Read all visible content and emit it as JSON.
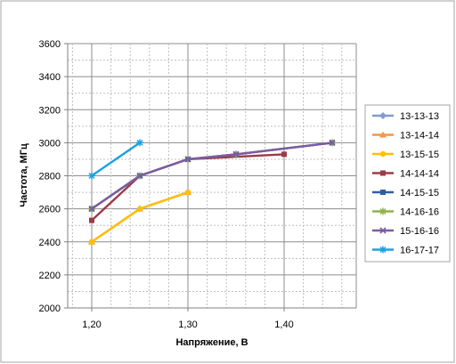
{
  "chart_data": {
    "type": "line",
    "title": "",
    "xlabel": "Напряжение, В",
    "ylabel": "Частота,  МГц",
    "xlim": [
      1.175,
      1.475
    ],
    "ylim": [
      2000,
      3600
    ],
    "x_ticks": [
      {
        "value": 1.2,
        "label": "1,20"
      },
      {
        "value": 1.3,
        "label": "1,30"
      },
      {
        "value": 1.4,
        "label": "1,40"
      }
    ],
    "y_ticks": [
      {
        "value": 2000,
        "label": "2000"
      },
      {
        "value": 2200,
        "label": "2200"
      },
      {
        "value": 2400,
        "label": "2400"
      },
      {
        "value": 2600,
        "label": "2600"
      },
      {
        "value": 2800,
        "label": "2800"
      },
      {
        "value": 3000,
        "label": "3000"
      },
      {
        "value": 3200,
        "label": "3200"
      },
      {
        "value": 3400,
        "label": "3400"
      },
      {
        "value": 3600,
        "label": "3600"
      }
    ],
    "grid": true,
    "legend_position": "right",
    "series": [
      {
        "name": "13-13-13",
        "color": "#7f9ccb",
        "marker": "diamond",
        "points": [
          [
            1.2,
            2400
          ],
          [
            1.25,
            2600
          ],
          [
            1.3,
            2700
          ]
        ]
      },
      {
        "name": "13-14-14",
        "color": "#f79646",
        "marker": "triangle",
        "points": [
          [
            1.2,
            2400
          ],
          [
            1.25,
            2600
          ],
          [
            1.3,
            2700
          ]
        ]
      },
      {
        "name": "13-15-15",
        "color": "#ffc000",
        "marker": "circle",
        "points": [
          [
            1.2,
            2400
          ],
          [
            1.25,
            2600
          ],
          [
            1.3,
            2700
          ]
        ]
      },
      {
        "name": "14-14-14",
        "color": "#9b3b47",
        "marker": "square",
        "points": [
          [
            1.2,
            2530
          ],
          [
            1.25,
            2800
          ],
          [
            1.3,
            2900
          ],
          [
            1.4,
            2930
          ]
        ]
      },
      {
        "name": "14-15-15",
        "color": "#2e5fa3",
        "marker": "square",
        "points": [
          [
            1.2,
            2600
          ],
          [
            1.25,
            2800
          ],
          [
            1.3,
            2900
          ],
          [
            1.35,
            2930
          ],
          [
            1.45,
            3000
          ]
        ]
      },
      {
        "name": "14-16-16",
        "color": "#8eb04f",
        "marker": "star",
        "points": [
          [
            1.2,
            2600
          ],
          [
            1.25,
            2800
          ],
          [
            1.3,
            2900
          ],
          [
            1.35,
            2930
          ],
          [
            1.45,
            3000
          ]
        ]
      },
      {
        "name": "15-16-16",
        "color": "#7b5ba4",
        "marker": "cross",
        "points": [
          [
            1.2,
            2600
          ],
          [
            1.25,
            2800
          ],
          [
            1.3,
            2900
          ],
          [
            1.35,
            2930
          ],
          [
            1.45,
            3000
          ]
        ]
      },
      {
        "name": "16-17-17",
        "color": "#1ba1e2",
        "marker": "star",
        "points": [
          [
            1.2,
            2800
          ],
          [
            1.25,
            3000
          ]
        ]
      }
    ]
  }
}
